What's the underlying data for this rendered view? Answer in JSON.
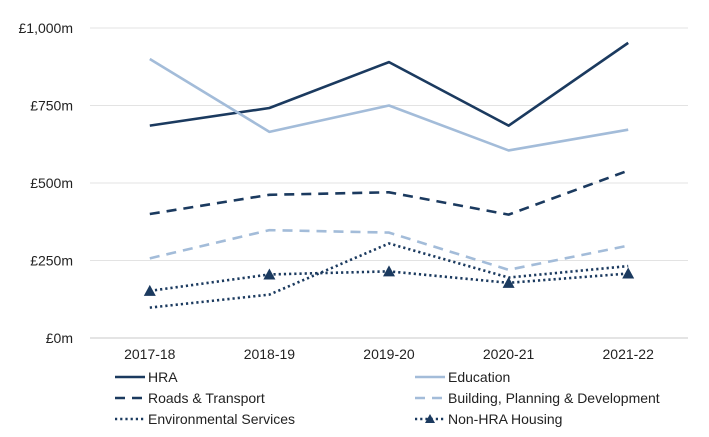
{
  "chart_data": {
    "type": "line",
    "title": "",
    "xlabel": "",
    "ylabel": "",
    "categories": [
      "2017-18",
      "2018-19",
      "2019-20",
      "2020-21",
      "2021-22"
    ],
    "ylim": [
      0,
      1000
    ],
    "yticks": [
      {
        "value": 0,
        "label": "£0m"
      },
      {
        "value": 250,
        "label": "£250m"
      },
      {
        "value": 500,
        "label": "£500m"
      },
      {
        "value": 750,
        "label": "£750m"
      },
      {
        "value": 1000,
        "label": "£1,000m"
      }
    ],
    "grid": "horizontal",
    "legend_position": "bottom",
    "series": [
      {
        "name": "HRA",
        "values": [
          685,
          742,
          890,
          685,
          952
        ],
        "color": "#1b3a5f",
        "style": "solid",
        "marker": "none"
      },
      {
        "name": "Education",
        "values": [
          900,
          665,
          750,
          605,
          672
        ],
        "color": "#a3bcd9",
        "style": "solid",
        "marker": "none"
      },
      {
        "name": "Roads & Transport",
        "values": [
          400,
          462,
          470,
          398,
          540
        ],
        "color": "#1b3a5f",
        "style": "dashed",
        "marker": "none"
      },
      {
        "name": "Building, Planning & Development",
        "values": [
          257,
          348,
          340,
          220,
          298
        ],
        "color": "#a3bcd9",
        "style": "dashed",
        "marker": "none"
      },
      {
        "name": "Environmental Services",
        "values": [
          98,
          140,
          305,
          195,
          232
        ],
        "color": "#1b3a5f",
        "style": "dotted",
        "marker": "none"
      },
      {
        "name": "Non-HRA Housing",
        "values": [
          152,
          205,
          215,
          178,
          208
        ],
        "color": "#1b3a5f",
        "style": "dotted",
        "marker": "triangle"
      }
    ]
  }
}
